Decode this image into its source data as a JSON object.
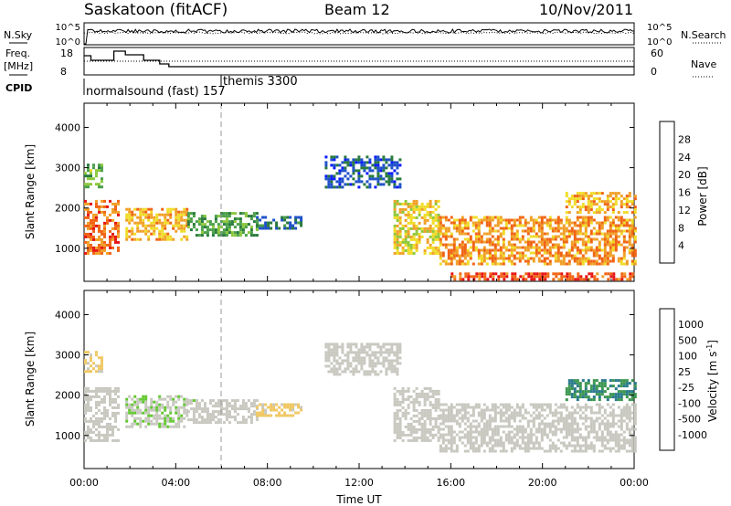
{
  "header": {
    "station": "Saskatoon (fitACF)",
    "beam": "Beam 12",
    "date": "10/Nov/2011"
  },
  "status_panels": {
    "nsky_label": "N.Sky",
    "nsearch_label": "N.Search",
    "freq_label_1": "Freq.",
    "freq_label_2": "[MHz]",
    "nave_label": "Nave",
    "cpid_label": "CPID",
    "noise_ticks_left": [
      "10^5",
      "10^0"
    ],
    "noise_ticks_right": [
      "10^5",
      "10^0"
    ],
    "freq_ticks_left": [
      "18",
      "8"
    ],
    "nave_ticks_right": [
      "60",
      "0"
    ],
    "cpid_segments": [
      {
        "label": "normalsound (fast) 157",
        "start_hour": 0
      },
      {
        "label": "themis 3300",
        "start_hour": 6
      }
    ]
  },
  "chart_data": [
    {
      "type": "heatmap",
      "title": "",
      "xlabel": "Time UT",
      "ylabel": "Slant Range [km]",
      "xlim_hours": [
        0,
        24
      ],
      "ylim": [
        180,
        4600
      ],
      "x_ticks": [
        "00:00",
        "04:00",
        "08:00",
        "12:00",
        "16:00",
        "20:00",
        "00:00"
      ],
      "y_ticks": [
        1000,
        2000,
        3000,
        4000
      ],
      "colorbar": {
        "label": "Power [dB]",
        "ticks": [
          4,
          8,
          12,
          16,
          20,
          24,
          28
        ],
        "range": [
          0,
          32
        ],
        "colors": [
          "#0a1aff",
          "#1e50c8",
          "#287a3c",
          "#4aa04a",
          "#8cc83c",
          "#f0dc28",
          "#f0a028",
          "#f06414",
          "#e61414"
        ]
      },
      "echo_regions": [
        {
          "t0": 0.0,
          "t1": 1.5,
          "r0": 900,
          "r1": 2200,
          "value": 26
        },
        {
          "t0": 0.0,
          "t1": 0.8,
          "r0": 2500,
          "r1": 3100,
          "value": 14
        },
        {
          "t0": 1.8,
          "t1": 4.5,
          "r0": 1200,
          "r1": 2000,
          "value": 22
        },
        {
          "t0": 4.5,
          "t1": 7.5,
          "r0": 1300,
          "r1": 1900,
          "value": 12
        },
        {
          "t0": 7.5,
          "t1": 9.5,
          "r0": 1500,
          "r1": 1800,
          "value": 8
        },
        {
          "t0": 10.5,
          "t1": 13.8,
          "r0": 2500,
          "r1": 3300,
          "value": 6
        },
        {
          "t0": 13.5,
          "t1": 15.5,
          "r0": 900,
          "r1": 2200,
          "value": 20
        },
        {
          "t0": 15.5,
          "t1": 24.0,
          "r0": 600,
          "r1": 1800,
          "value": 24
        },
        {
          "t0": 16.0,
          "t1": 24.0,
          "r0": 250,
          "r1": 400,
          "value": 28
        },
        {
          "t0": 21.0,
          "t1": 24.0,
          "r0": 1900,
          "r1": 2400,
          "value": 22
        }
      ]
    },
    {
      "type": "heatmap",
      "title": "",
      "xlabel": "Time UT",
      "ylabel": "Slant Range [km]",
      "xlim_hours": [
        0,
        24
      ],
      "ylim": [
        180,
        4600
      ],
      "x_ticks": [
        "00:00",
        "04:00",
        "08:00",
        "12:00",
        "16:00",
        "20:00",
        "00:00"
      ],
      "y_ticks": [
        1000,
        2000,
        3000,
        4000
      ],
      "colorbar": {
        "label": "Velocity [m s^-1]",
        "ticks": [
          "1000",
          "500",
          "100",
          "25",
          "-25",
          "-100",
          "-500",
          "-1000"
        ],
        "range": [
          -1200,
          1200
        ],
        "colors": [
          "#e61414",
          "#f05a0a",
          "#f0a014",
          "#f0c864",
          "#c8c8c0",
          "#c8c8c0",
          "#64c832",
          "#3c9650",
          "#287a8c",
          "#1e50c8"
        ]
      },
      "echo_regions": [
        {
          "t0": 0.0,
          "t1": 1.5,
          "r0": 900,
          "r1": 2200,
          "value": 0
        },
        {
          "t0": 0.0,
          "t1": 0.8,
          "r0": 2600,
          "r1": 3100,
          "value": -300
        },
        {
          "t0": 1.8,
          "t1": 4.5,
          "r0": 1200,
          "r1": 2000,
          "value": 200
        },
        {
          "t0": 4.5,
          "t1": 7.5,
          "r0": 1300,
          "r1": 1900,
          "value": 120
        },
        {
          "t0": 7.5,
          "t1": 9.5,
          "r0": 1500,
          "r1": 1800,
          "value": -300
        },
        {
          "t0": 10.5,
          "t1": 13.8,
          "r0": 2500,
          "r1": 3300,
          "value": 0
        },
        {
          "t0": 13.5,
          "t1": 15.5,
          "r0": 900,
          "r1": 2200,
          "value": 80
        },
        {
          "t0": 15.5,
          "t1": 24.0,
          "r0": 600,
          "r1": 1800,
          "value": 0
        },
        {
          "t0": 21.0,
          "t1": 24.0,
          "r0": 1900,
          "r1": 2400,
          "value": 700
        }
      ]
    }
  ]
}
